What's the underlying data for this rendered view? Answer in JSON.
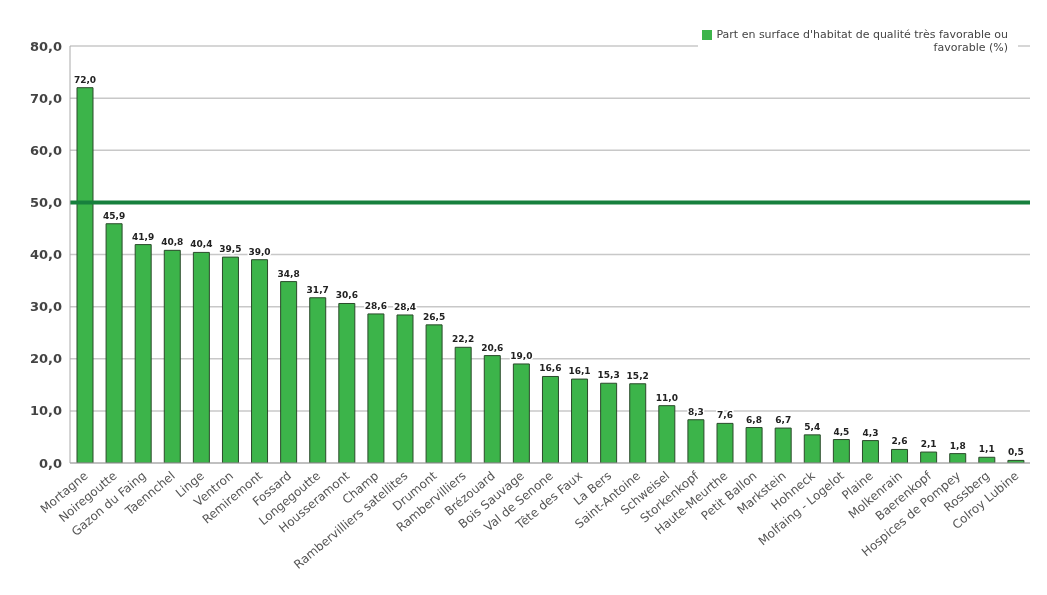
{
  "chart_data": {
    "type": "bar",
    "categories": [
      "Mortagne",
      "Noiregoutte",
      "Gazon du Faing",
      "Taennchel",
      "Linge",
      "Ventron",
      "Remiremont",
      "Fossard",
      "Longegoutte",
      "Housseramont",
      "Champ",
      "Rambervilliers satellites",
      "Drumont",
      "Rambervilliers",
      "Brézouard",
      "Bois Sauvage",
      "Val de Senone",
      "Tête des Faux",
      "La Bers",
      "Saint-Antoine",
      "Schweisel",
      "Storkenkopf",
      "Haute-Meurthe",
      "Petit Ballon",
      "Markstein",
      "Hohneck",
      "Molfaing - Logelot",
      "Plaine",
      "Molkenrain",
      "Baerenkopf",
      "Hospices de Pompey",
      "Rossberg",
      "Colroy Lubine"
    ],
    "series": [
      {
        "name": "Part en surface d'habitat de qualité très favorable ou favorable (%)",
        "color": "#3cb44a",
        "values": [
          72.0,
          45.9,
          41.9,
          40.8,
          40.4,
          39.5,
          39.0,
          34.8,
          31.7,
          30.6,
          28.6,
          28.4,
          26.5,
          22.2,
          20.6,
          19.0,
          16.6,
          16.1,
          15.3,
          15.2,
          11.0,
          8.3,
          7.6,
          6.8,
          6.7,
          5.4,
          4.5,
          4.3,
          2.6,
          2.1,
          1.8,
          1.1,
          0.5
        ],
        "value_labels": [
          "72,0",
          "45,9",
          "41,9",
          "40,8",
          "40,4",
          "39,5",
          "39,0",
          "34,8",
          "31,7",
          "30,6",
          "28,6",
          "28,4",
          "26,5",
          "22,2",
          "20,6",
          "19,0",
          "16,6",
          "16,1",
          "15,3",
          "15,2",
          "11,0",
          "8,3",
          "7,6",
          "6,8",
          "6,7",
          "5,4",
          "4,5",
          "4,3",
          "2,6",
          "2,1",
          "1,8",
          "1,1",
          "0,5"
        ]
      }
    ],
    "ylim": [
      0,
      80
    ],
    "yticks": [
      {
        "value": 0,
        "label": "0,0"
      },
      {
        "value": 10,
        "label": "10,0"
      },
      {
        "value": 20,
        "label": "20,0"
      },
      {
        "value": 30,
        "label": "30,0"
      },
      {
        "value": 40,
        "label": "40,0"
      },
      {
        "value": 50,
        "label": "50,0"
      },
      {
        "value": 60,
        "label": "60,0"
      },
      {
        "value": 70,
        "label": "70,0"
      },
      {
        "value": 80,
        "label": "80,0"
      }
    ],
    "ref_lines": [
      {
        "axis": "y",
        "value": 50,
        "color": "#17803d"
      }
    ],
    "grid": "y",
    "legend": "top right"
  }
}
